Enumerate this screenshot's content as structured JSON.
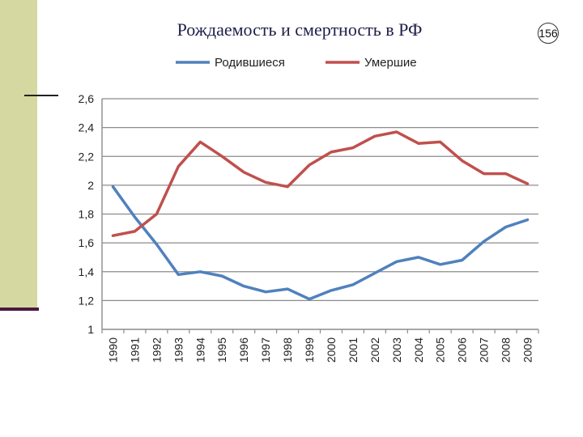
{
  "slide": {
    "title": "Рождаемость и смертность в РФ",
    "page_number": "156"
  },
  "colors": {
    "side_panel": "#d6d8a2",
    "series_births": "#4f81bd",
    "series_deaths": "#c0504d",
    "grid": "#8c8c8c"
  },
  "chart_data": {
    "type": "line",
    "title": "",
    "xlabel": "",
    "ylabel": "",
    "legend_position": "top",
    "grid": true,
    "ylim": [
      1,
      2.6
    ],
    "y_ticks": [
      "1",
      "1,2",
      "1,4",
      "1,6",
      "1,8",
      "2",
      "2,2",
      "2,4",
      "2,6"
    ],
    "x": [
      "1990",
      "1991",
      "1992",
      "1993",
      "1994",
      "1995",
      "1996",
      "1997",
      "1998",
      "1999",
      "2000",
      "2001",
      "2002",
      "2003",
      "2004",
      "2005",
      "2006",
      "2007",
      "2008",
      "2009"
    ],
    "series": [
      {
        "name": "Родившиеся",
        "color": "#4f81bd",
        "values": [
          1.99,
          1.78,
          1.59,
          1.38,
          1.4,
          1.37,
          1.3,
          1.26,
          1.28,
          1.21,
          1.27,
          1.31,
          1.39,
          1.47,
          1.5,
          1.45,
          1.48,
          1.61,
          1.71,
          1.76
        ]
      },
      {
        "name": "Умершие",
        "color": "#c0504d",
        "values": [
          1.65,
          1.68,
          1.8,
          2.13,
          2.3,
          2.2,
          2.09,
          2.02,
          1.99,
          2.14,
          2.23,
          2.26,
          2.34,
          2.37,
          2.29,
          2.3,
          2.17,
          2.08,
          2.08,
          2.01
        ]
      }
    ]
  }
}
